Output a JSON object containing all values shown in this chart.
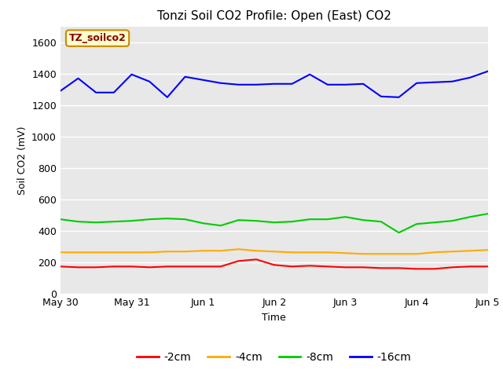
{
  "title": "Tonzi Soil CO2 Profile: Open (East) CO2",
  "xlabel": "Time",
  "ylabel": "Soil CO2 (mV)",
  "ylim": [
    0,
    1700
  ],
  "yticks": [
    0,
    200,
    400,
    600,
    800,
    1000,
    1200,
    1400,
    1600
  ],
  "bg_color": "#e8e8e8",
  "label_box_text": "TZ_soilco2",
  "label_box_facecolor": "#ffffcc",
  "label_box_edgecolor": "#cc8800",
  "label_box_textcolor": "#880000",
  "legend_entries": [
    "-2cm",
    "-4cm",
    "-8cm",
    "-16cm"
  ],
  "legend_colors": [
    "#ff0000",
    "#ffaa00",
    "#00cc00",
    "#0000ff"
  ],
  "x_days": [
    0,
    0.25,
    0.5,
    0.75,
    1.0,
    1.25,
    1.5,
    1.75,
    2.0,
    2.25,
    2.5,
    2.75,
    3.0,
    3.25,
    3.5,
    3.75,
    4.0,
    4.25,
    4.5,
    4.75,
    5.0,
    5.25,
    5.5,
    5.75,
    6.0
  ],
  "series_2cm": [
    175,
    170,
    170,
    175,
    175,
    170,
    175,
    175,
    175,
    175,
    210,
    220,
    185,
    175,
    180,
    175,
    170,
    170,
    165,
    165,
    160,
    160,
    170,
    175,
    175
  ],
  "series_4cm": [
    265,
    265,
    265,
    265,
    265,
    265,
    270,
    270,
    275,
    275,
    285,
    275,
    270,
    265,
    265,
    265,
    260,
    255,
    255,
    255,
    255,
    265,
    270,
    275,
    280
  ],
  "series_8cm": [
    475,
    460,
    455,
    460,
    465,
    475,
    480,
    475,
    450,
    435,
    470,
    465,
    455,
    460,
    475,
    475,
    490,
    470,
    460,
    390,
    445,
    455,
    465,
    490,
    510
  ],
  "series_16cm": [
    1290,
    1370,
    1280,
    1280,
    1395,
    1350,
    1250,
    1380,
    1360,
    1340,
    1330,
    1330,
    1335,
    1335,
    1395,
    1330,
    1330,
    1335,
    1255,
    1250,
    1340,
    1345,
    1350,
    1375,
    1415
  ],
  "x_tick_positions": [
    0,
    1,
    2,
    3,
    4,
    5,
    6
  ],
  "x_tick_labels": [
    "May 30",
    "May 31",
    "Jun 1",
    "Jun 2",
    "Jun 3",
    "Jun 4",
    "Jun 5"
  ]
}
